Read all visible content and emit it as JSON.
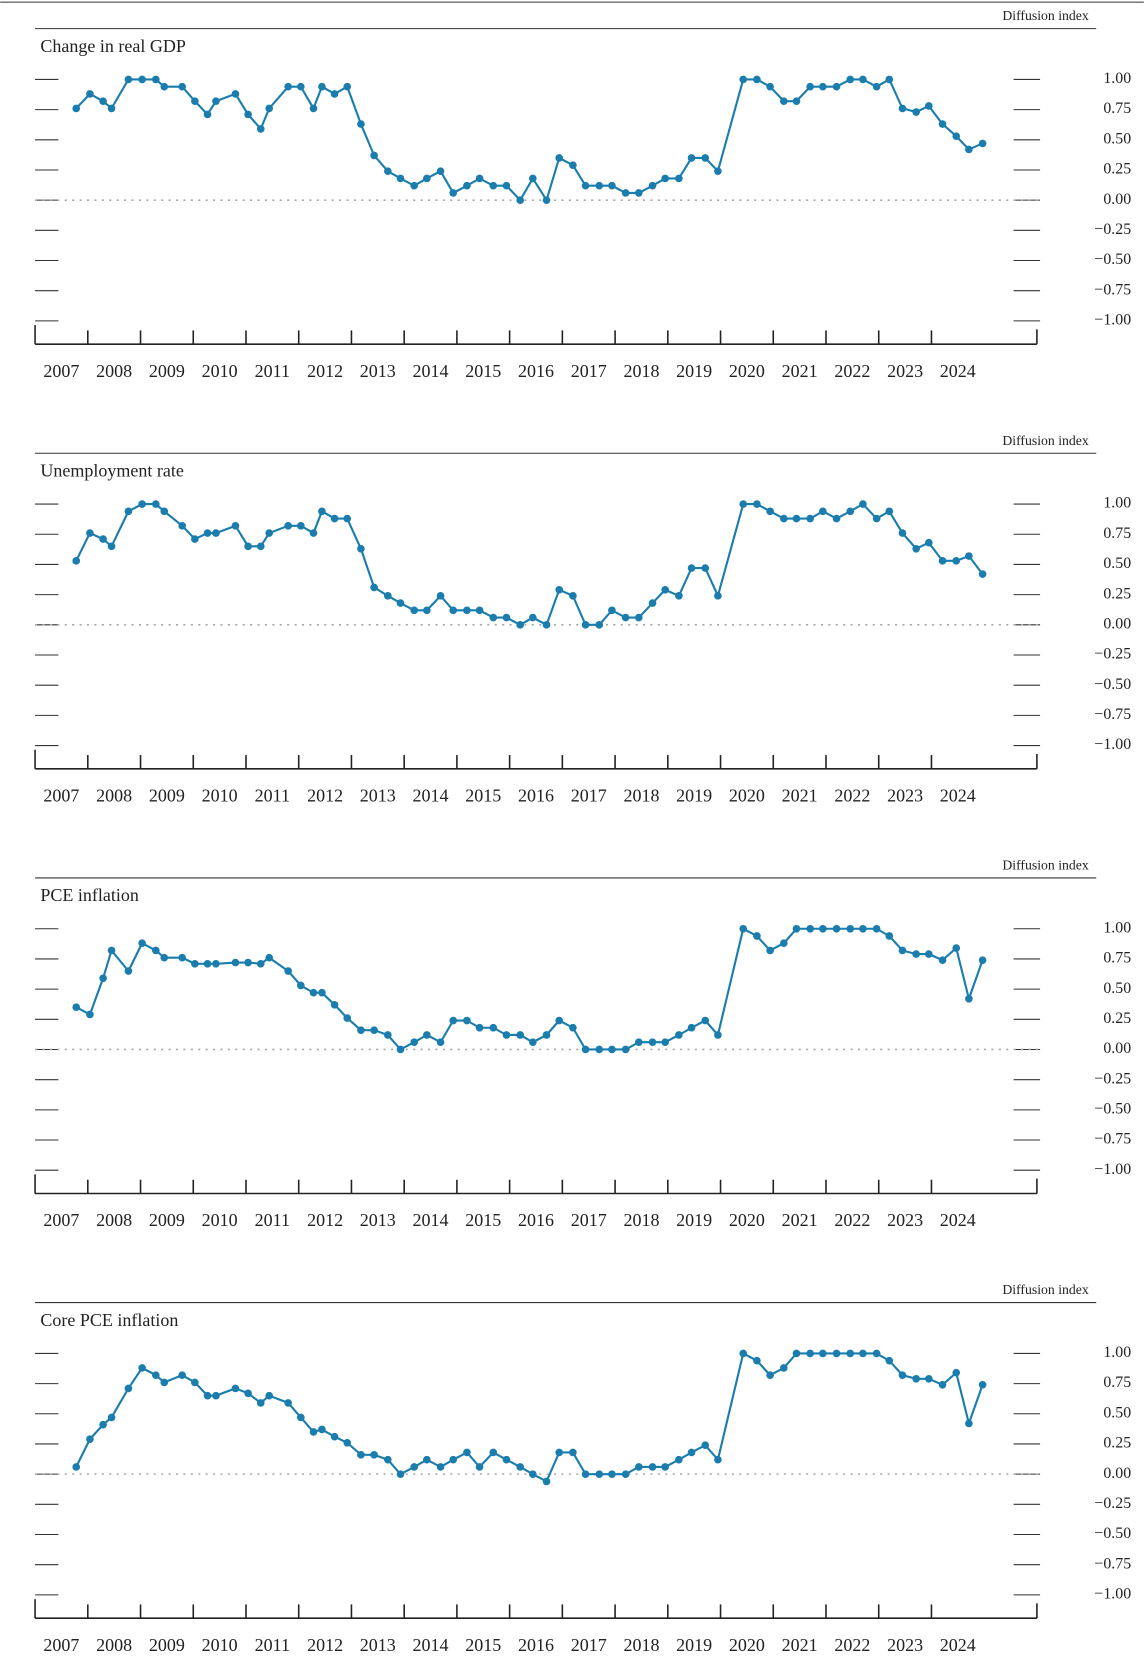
{
  "chart_data": [
    {
      "type": "line",
      "title": "Change in real GDP",
      "y_axis_label": "Diffusion index",
      "color": "#1a7dae",
      "x": [
        2007.78,
        2008.04,
        2008.29,
        2008.45,
        2008.77,
        2009.03,
        2009.29,
        2009.45,
        2009.79,
        2010.03,
        2010.27,
        2010.43,
        2010.8,
        2011.04,
        2011.28,
        2011.44,
        2011.8,
        2012.04,
        2012.28,
        2012.44,
        2012.68,
        2012.92,
        2013.18,
        2013.43,
        2013.69,
        2013.93,
        2014.19,
        2014.43,
        2014.69,
        2014.93,
        2015.19,
        2015.43,
        2015.69,
        2015.94,
        2016.2,
        2016.44,
        2016.7,
        2016.94,
        2017.2,
        2017.44,
        2017.7,
        2017.94,
        2018.2,
        2018.45,
        2018.71,
        2018.95,
        2019.21,
        2019.45,
        2019.71,
        2019.95,
        2020.43,
        2020.69,
        2020.94,
        2021.2,
        2021.44,
        2021.7,
        2021.94,
        2022.2,
        2022.46,
        2022.7,
        2022.96,
        2023.2,
        2023.45,
        2023.71,
        2023.95,
        2024.21,
        2024.47,
        2024.71,
        2024.97
      ],
      "values": [
        0.76,
        0.88,
        0.82,
        0.76,
        1,
        1,
        1,
        0.94,
        0.94,
        0.82,
        0.71,
        0.82,
        0.88,
        0.71,
        0.59,
        0.76,
        0.94,
        0.94,
        0.76,
        0.94,
        0.88,
        0.94,
        0.63,
        0.37,
        0.24,
        0.18,
        0.12,
        0.18,
        0.24,
        0.06,
        0.12,
        0.18,
        0.12,
        0.12,
        0,
        0.18,
        0,
        0.35,
        0.29,
        0.12,
        0.12,
        0.12,
        0.06,
        0.06,
        0.12,
        0.18,
        0.18,
        0.35,
        0.35,
        0.24,
        1,
        1,
        0.94,
        0.82,
        0.82,
        0.94,
        0.94,
        0.94,
        1,
        1,
        0.94,
        1,
        0.76,
        0.73,
        0.78,
        0.63,
        0.53,
        0.42,
        0.47
      ],
      "xlim": [
        2007,
        2026
      ],
      "xticks": [
        2007,
        2008,
        2009,
        2010,
        2011,
        2012,
        2013,
        2014,
        2015,
        2016,
        2017,
        2018,
        2019,
        2020,
        2021,
        2022,
        2023,
        2024
      ],
      "ylim": [
        -1,
        1
      ],
      "yticks": [
        {
          "value": 1,
          "label": "1.00"
        },
        {
          "value": 0.75,
          "label": "0.75"
        },
        {
          "value": 0.5,
          "label": "0.50"
        },
        {
          "value": 0.25,
          "label": "0.25"
        },
        {
          "value": 0,
          "label": "0.00"
        },
        {
          "value": -0.25,
          "label": "−0.25"
        },
        {
          "value": -0.5,
          "label": "−0.50"
        },
        {
          "value": -0.75,
          "label": "−0.75"
        },
        {
          "value": -1,
          "label": "−1.00"
        }
      ],
      "zero_line": true
    },
    {
      "type": "line",
      "title": "Unemployment rate",
      "y_axis_label": "Diffusion index",
      "color": "#1a7dae",
      "x": [
        2007.78,
        2008.04,
        2008.29,
        2008.45,
        2008.77,
        2009.03,
        2009.29,
        2009.45,
        2009.79,
        2010.03,
        2010.27,
        2010.43,
        2010.8,
        2011.04,
        2011.28,
        2011.44,
        2011.8,
        2012.04,
        2012.28,
        2012.44,
        2012.68,
        2012.92,
        2013.18,
        2013.43,
        2013.69,
        2013.93,
        2014.19,
        2014.43,
        2014.69,
        2014.93,
        2015.19,
        2015.43,
        2015.69,
        2015.94,
        2016.2,
        2016.44,
        2016.7,
        2016.94,
        2017.2,
        2017.44,
        2017.7,
        2017.94,
        2018.2,
        2018.45,
        2018.71,
        2018.95,
        2019.21,
        2019.45,
        2019.71,
        2019.95,
        2020.43,
        2020.69,
        2020.94,
        2021.2,
        2021.44,
        2021.7,
        2021.94,
        2022.2,
        2022.46,
        2022.7,
        2022.96,
        2023.2,
        2023.45,
        2023.71,
        2023.95,
        2024.21,
        2024.47,
        2024.71,
        2024.97
      ],
      "values": [
        0.53,
        0.76,
        0.71,
        0.65,
        0.94,
        1,
        1,
        0.94,
        0.82,
        0.71,
        0.76,
        0.76,
        0.82,
        0.65,
        0.65,
        0.76,
        0.82,
        0.82,
        0.76,
        0.94,
        0.88,
        0.88,
        0.63,
        0.31,
        0.24,
        0.18,
        0.12,
        0.12,
        0.24,
        0.12,
        0.12,
        0.12,
        0.06,
        0.06,
        0,
        0.06,
        0,
        0.29,
        0.24,
        0,
        0,
        0.12,
        0.06,
        0.06,
        0.18,
        0.29,
        0.24,
        0.47,
        0.47,
        0.24,
        1,
        1,
        0.94,
        0.88,
        0.88,
        0.88,
        0.94,
        0.88,
        0.94,
        1,
        0.88,
        0.94,
        0.76,
        0.63,
        0.68,
        0.53,
        0.53,
        0.57,
        0.42
      ],
      "xlim": [
        2007,
        2026
      ],
      "xticks": [
        2007,
        2008,
        2009,
        2010,
        2011,
        2012,
        2013,
        2014,
        2015,
        2016,
        2017,
        2018,
        2019,
        2020,
        2021,
        2022,
        2023,
        2024
      ],
      "ylim": [
        -1,
        1
      ],
      "yticks": [
        {
          "value": 1,
          "label": "1.00"
        },
        {
          "value": 0.75,
          "label": "0.75"
        },
        {
          "value": 0.5,
          "label": "0.50"
        },
        {
          "value": 0.25,
          "label": "0.25"
        },
        {
          "value": 0,
          "label": "0.00"
        },
        {
          "value": -0.25,
          "label": "−0.25"
        },
        {
          "value": -0.5,
          "label": "−0.50"
        },
        {
          "value": -0.75,
          "label": "−0.75"
        },
        {
          "value": -1,
          "label": "−1.00"
        }
      ],
      "zero_line": true
    },
    {
      "type": "line",
      "title": "PCE inflation",
      "y_axis_label": "Diffusion index",
      "color": "#1a7dae",
      "x": [
        2007.78,
        2008.04,
        2008.29,
        2008.45,
        2008.77,
        2009.03,
        2009.29,
        2009.45,
        2009.79,
        2010.03,
        2010.27,
        2010.43,
        2010.8,
        2011.04,
        2011.28,
        2011.44,
        2011.8,
        2012.04,
        2012.28,
        2012.44,
        2012.68,
        2012.92,
        2013.18,
        2013.43,
        2013.69,
        2013.93,
        2014.19,
        2014.43,
        2014.69,
        2014.93,
        2015.19,
        2015.43,
        2015.69,
        2015.94,
        2016.2,
        2016.44,
        2016.7,
        2016.94,
        2017.2,
        2017.44,
        2017.7,
        2017.94,
        2018.2,
        2018.45,
        2018.71,
        2018.95,
        2019.21,
        2019.45,
        2019.71,
        2019.95,
        2020.43,
        2020.69,
        2020.94,
        2021.2,
        2021.44,
        2021.7,
        2021.94,
        2022.2,
        2022.46,
        2022.7,
        2022.96,
        2023.2,
        2023.45,
        2023.71,
        2023.95,
        2024.21,
        2024.47,
        2024.71,
        2024.97
      ],
      "values": [
        0.35,
        0.29,
        0.59,
        0.82,
        0.65,
        0.88,
        0.82,
        0.76,
        0.76,
        0.71,
        0.71,
        0.71,
        0.72,
        0.72,
        0.71,
        0.76,
        0.65,
        0.53,
        0.47,
        0.47,
        0.37,
        0.26,
        0.16,
        0.16,
        0.12,
        0,
        0.06,
        0.12,
        0.06,
        0.24,
        0.24,
        0.18,
        0.18,
        0.12,
        0.12,
        0.06,
        0.12,
        0.24,
        0.18,
        0,
        0,
        0,
        0,
        0.06,
        0.06,
        0.06,
        0.12,
        0.18,
        0.24,
        0.12,
        1,
        0.94,
        0.82,
        0.88,
        1,
        1,
        1,
        1,
        1,
        1,
        1,
        0.94,
        0.82,
        0.79,
        0.79,
        0.74,
        0.84,
        0.42,
        0.74
      ],
      "xlim": [
        2007,
        2026
      ],
      "xticks": [
        2007,
        2008,
        2009,
        2010,
        2011,
        2012,
        2013,
        2014,
        2015,
        2016,
        2017,
        2018,
        2019,
        2020,
        2021,
        2022,
        2023,
        2024
      ],
      "ylim": [
        -1,
        1
      ],
      "yticks": [
        {
          "value": 1,
          "label": "1.00"
        },
        {
          "value": 0.75,
          "label": "0.75"
        },
        {
          "value": 0.5,
          "label": "0.50"
        },
        {
          "value": 0.25,
          "label": "0.25"
        },
        {
          "value": 0,
          "label": "0.00"
        },
        {
          "value": -0.25,
          "label": "−0.25"
        },
        {
          "value": -0.5,
          "label": "−0.50"
        },
        {
          "value": -0.75,
          "label": "−0.75"
        },
        {
          "value": -1,
          "label": "−1.00"
        }
      ],
      "zero_line": true
    },
    {
      "type": "line",
      "title": "Core PCE inflation",
      "y_axis_label": "Diffusion index",
      "color": "#1a7dae",
      "x": [
        2007.78,
        2008.04,
        2008.29,
        2008.45,
        2008.77,
        2009.03,
        2009.29,
        2009.45,
        2009.79,
        2010.03,
        2010.27,
        2010.43,
        2010.8,
        2011.04,
        2011.28,
        2011.44,
        2011.8,
        2012.04,
        2012.28,
        2012.44,
        2012.68,
        2012.92,
        2013.18,
        2013.43,
        2013.69,
        2013.93,
        2014.19,
        2014.43,
        2014.69,
        2014.93,
        2015.19,
        2015.43,
        2015.69,
        2015.94,
        2016.2,
        2016.44,
        2016.7,
        2016.94,
        2017.2,
        2017.44,
        2017.7,
        2017.94,
        2018.2,
        2018.45,
        2018.71,
        2018.95,
        2019.21,
        2019.45,
        2019.71,
        2019.95,
        2020.43,
        2020.69,
        2020.94,
        2021.2,
        2021.44,
        2021.7,
        2021.94,
        2022.2,
        2022.46,
        2022.7,
        2022.96,
        2023.2,
        2023.45,
        2023.71,
        2023.95,
        2024.21,
        2024.47,
        2024.71,
        2024.97
      ],
      "values": [
        0.06,
        0.29,
        0.41,
        0.47,
        0.71,
        0.88,
        0.82,
        0.76,
        0.82,
        0.76,
        0.65,
        0.65,
        0.71,
        0.67,
        0.59,
        0.65,
        0.59,
        0.47,
        0.35,
        0.37,
        0.31,
        0.26,
        0.16,
        0.16,
        0.12,
        0,
        0.06,
        0.12,
        0.06,
        0.12,
        0.18,
        0.06,
        0.18,
        0.12,
        0.06,
        0,
        -0.06,
        0.18,
        0.18,
        0,
        0,
        0,
        0,
        0.06,
        0.06,
        0.06,
        0.12,
        0.18,
        0.24,
        0.12,
        1,
        0.94,
        0.82,
        0.88,
        1,
        1,
        1,
        1,
        1,
        1,
        1,
        0.94,
        0.82,
        0.79,
        0.79,
        0.74,
        0.84,
        0.42,
        0.74
      ],
      "xlim": [
        2007,
        2026
      ],
      "xticks": [
        2007,
        2008,
        2009,
        2010,
        2011,
        2012,
        2013,
        2014,
        2015,
        2016,
        2017,
        2018,
        2019,
        2020,
        2021,
        2022,
        2023,
        2024
      ],
      "ylim": [
        -1,
        1
      ],
      "yticks": [
        {
          "value": 1,
          "label": "1.00"
        },
        {
          "value": 0.75,
          "label": "0.75"
        },
        {
          "value": 0.5,
          "label": "0.50"
        },
        {
          "value": 0.25,
          "label": "0.25"
        },
        {
          "value": 0,
          "label": "0.00"
        },
        {
          "value": -0.25,
          "label": "−0.25"
        },
        {
          "value": -0.5,
          "label": "−0.50"
        },
        {
          "value": -0.75,
          "label": "−0.75"
        },
        {
          "value": -1,
          "label": "−1.00"
        }
      ],
      "zero_line": true
    }
  ]
}
